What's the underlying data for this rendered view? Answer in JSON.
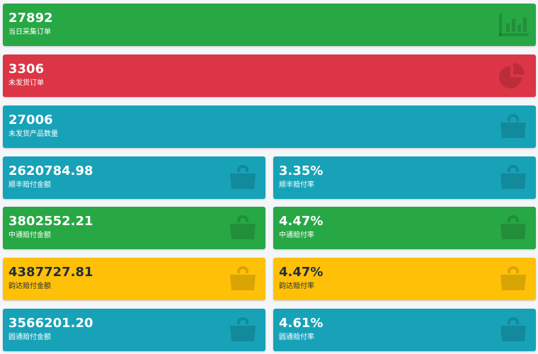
{
  "colors": {
    "green": "#28a745",
    "red": "#dc3545",
    "teal": "#17a2b8",
    "yellow": "#ffc107"
  },
  "full_boxes": [
    {
      "value": "27892",
      "label": "当日采集订单",
      "color": "green",
      "icon": "bar-chart-icon"
    },
    {
      "value": "3306",
      "label": "未发货订单",
      "color": "red",
      "icon": "pie-chart-icon"
    },
    {
      "value": "27006",
      "label": "未发货产品数量",
      "color": "teal",
      "icon": "shopping-bag-icon"
    }
  ],
  "carrier_rows": [
    {
      "left": {
        "value": "2620784.98",
        "label": "顺丰赔付金额",
        "color": "teal",
        "icon": "shopping-bag-icon"
      },
      "right": {
        "value": "3.35%",
        "label": "顺丰赔付率",
        "color": "teal",
        "icon": "shopping-bag-icon"
      }
    },
    {
      "left": {
        "value": "3802552.21",
        "label": "中通赔付金额",
        "color": "green",
        "icon": "shopping-bag-icon"
      },
      "right": {
        "value": "4.47%",
        "label": "中通赔付率",
        "color": "green",
        "icon": "shopping-bag-icon"
      }
    },
    {
      "left": {
        "value": "4387727.81",
        "label": "韵达赔付金额",
        "color": "yellow",
        "icon": "shopping-bag-icon"
      },
      "right": {
        "value": "4.47%",
        "label": "韵达赔付率",
        "color": "yellow",
        "icon": "shopping-bag-icon"
      }
    },
    {
      "left": {
        "value": "3566201.20",
        "label": "圆通赔付金额",
        "color": "teal",
        "icon": "shopping-bag-icon"
      },
      "right": {
        "value": "4.61%",
        "label": "圆通赔付率",
        "color": "teal",
        "icon": "shopping-bag-icon"
      }
    }
  ]
}
